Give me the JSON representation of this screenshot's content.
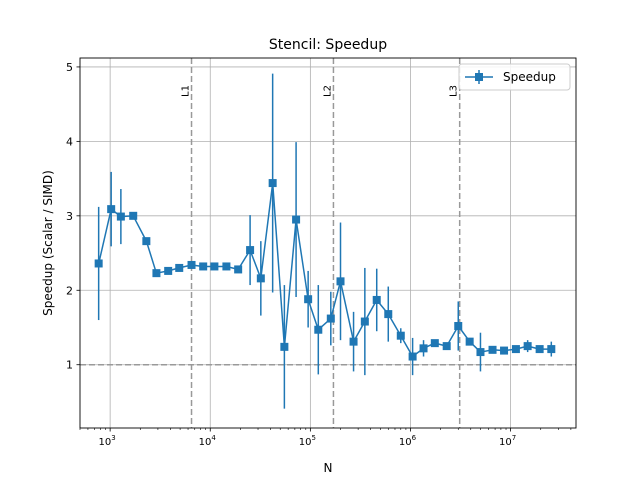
{
  "chart_data": {
    "type": "line",
    "title": "Stencil: Speedup",
    "xlabel": "N",
    "ylabel": "Speedup (Scalar / SIMD)",
    "xscale": "log",
    "xlim": [
      500,
      45000000
    ],
    "ylim": [
      0.15,
      5.12
    ],
    "grid": true,
    "legend_position": "top-right",
    "series_color": "#1f77b4",
    "reference_color": "#999999",
    "x_ticks": [
      {
        "value": 1000,
        "base": "10",
        "exp": "3"
      },
      {
        "value": 10000,
        "base": "10",
        "exp": "4"
      },
      {
        "value": 100000,
        "base": "10",
        "exp": "5"
      },
      {
        "value": 1000000,
        "base": "10",
        "exp": "6"
      },
      {
        "value": 10000000,
        "base": "10",
        "exp": "7"
      }
    ],
    "y_ticks": [
      {
        "value": 1,
        "label": "1"
      },
      {
        "value": 2,
        "label": "2"
      },
      {
        "value": 3,
        "label": "3"
      },
      {
        "value": 4,
        "label": "4"
      },
      {
        "value": 5,
        "label": "5"
      }
    ],
    "reference_line": {
      "y": 1.0
    },
    "cache_lines": [
      {
        "label": "L1",
        "x": 6500
      },
      {
        "label": "L2",
        "x": 170000
      },
      {
        "label": "L3",
        "x": 3100000
      }
    ],
    "series": [
      {
        "name": "Speedup",
        "marker": "square",
        "points": [
          {
            "x": 768,
            "y": 2.36,
            "err": 0.76
          },
          {
            "x": 1024,
            "y": 3.09,
            "err": 0.5
          },
          {
            "x": 1280,
            "y": 2.99,
            "err": 0.37
          },
          {
            "x": 1700,
            "y": 3.0,
            "err": 0.0
          },
          {
            "x": 2300,
            "y": 2.66,
            "err": 0.0
          },
          {
            "x": 2900,
            "y": 2.23,
            "err": 0.0
          },
          {
            "x": 3800,
            "y": 2.26,
            "err": 0.0
          },
          {
            "x": 4900,
            "y": 2.3,
            "err": 0.0
          },
          {
            "x": 6500,
            "y": 2.34,
            "err": 0.0
          },
          {
            "x": 8500,
            "y": 2.32,
            "err": 0.0
          },
          {
            "x": 11000,
            "y": 2.32,
            "err": 0.0
          },
          {
            "x": 14500,
            "y": 2.32,
            "err": 0.0
          },
          {
            "x": 19000,
            "y": 2.28,
            "err": 0.0
          },
          {
            "x": 25000,
            "y": 2.54,
            "err": 0.47
          },
          {
            "x": 32000,
            "y": 2.16,
            "err": 0.5
          },
          {
            "x": 42000,
            "y": 3.44,
            "err": 1.47
          },
          {
            "x": 55000,
            "y": 1.24,
            "err": 0.83
          },
          {
            "x": 72000,
            "y": 2.95,
            "err": 1.04
          },
          {
            "x": 95000,
            "y": 1.88,
            "err": 0.38
          },
          {
            "x": 120000,
            "y": 1.47,
            "err": 0.6
          },
          {
            "x": 160000,
            "y": 1.62,
            "err": 0.36
          },
          {
            "x": 200000,
            "y": 2.12,
            "err": 0.79
          },
          {
            "x": 270000,
            "y": 1.31,
            "err": 0.4
          },
          {
            "x": 350000,
            "y": 1.58,
            "err": 0.72
          },
          {
            "x": 460000,
            "y": 1.87,
            "err": 0.42
          },
          {
            "x": 600000,
            "y": 1.68,
            "err": 0.37
          },
          {
            "x": 800000,
            "y": 1.39,
            "err": 0.1
          },
          {
            "x": 1050000,
            "y": 1.11,
            "err": 0.25
          },
          {
            "x": 1350000,
            "y": 1.22,
            "err": 0.11
          },
          {
            "x": 1750000,
            "y": 1.29,
            "err": 0.0
          },
          {
            "x": 2300000,
            "y": 1.25,
            "err": 0.0
          },
          {
            "x": 3000000,
            "y": 1.52,
            "err": 0.33
          },
          {
            "x": 3900000,
            "y": 1.31,
            "err": 0.0
          },
          {
            "x": 5000000,
            "y": 1.17,
            "err": 0.26
          },
          {
            "x": 6600000,
            "y": 1.2,
            "err": 0.0
          },
          {
            "x": 8600000,
            "y": 1.19,
            "err": 0.0
          },
          {
            "x": 11300000,
            "y": 1.21,
            "err": 0.0
          },
          {
            "x": 14800000,
            "y": 1.25,
            "err": 0.08
          },
          {
            "x": 19500000,
            "y": 1.21,
            "err": 0.0
          },
          {
            "x": 25500000,
            "y": 1.21,
            "err": 0.1
          }
        ]
      }
    ]
  }
}
